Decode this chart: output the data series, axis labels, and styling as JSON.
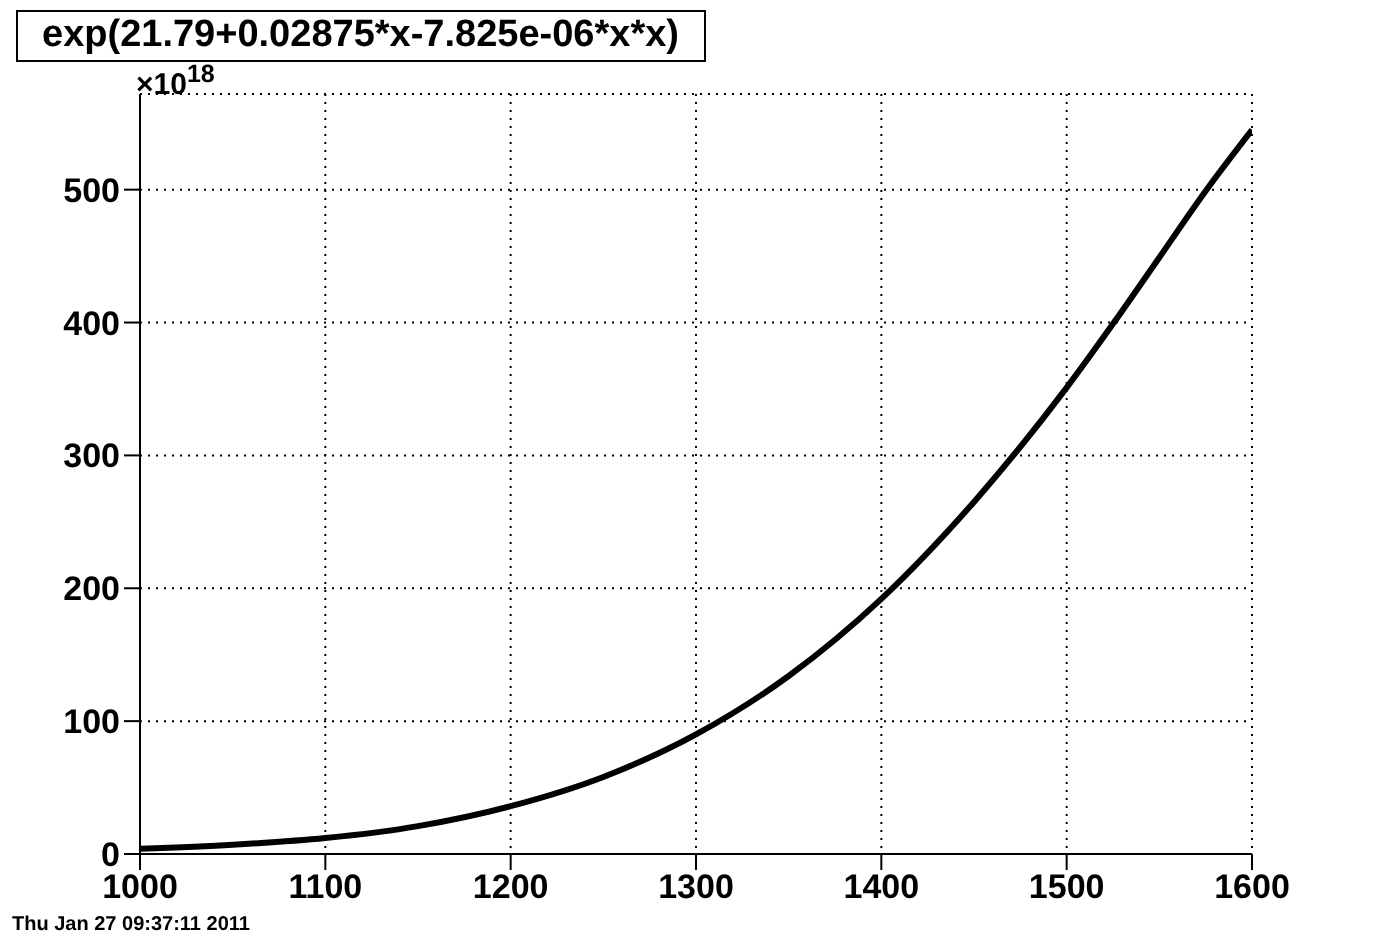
{
  "chart_data": {
    "type": "line",
    "title": "exp(21.79+0.02875*x-7.825e-06*x*x)",
    "ylabel": "×10$^{18}$",
    "annotations": [
      "Thu Jan 27 09:37:11 2011"
    ],
    "x": [
      1000,
      1050,
      1100,
      1150,
      1200,
      1250,
      1300,
      1350,
      1400,
      1450,
      1500,
      1525,
      1550,
      1575,
      1600
    ],
    "series": [
      {
        "color": "#000000",
        "values": [
          4,
          7,
          12,
          21,
          36,
          58,
          90,
          134,
          192,
          265,
          351,
          399,
          449,
          499,
          545
        ]
      }
    ],
    "xlim": [
      1000,
      1600
    ],
    "xticks": [
      1000,
      1100,
      1200,
      1300,
      1400,
      1500,
      1600
    ],
    "ylim": [
      0,
      572
    ],
    "yticks": [
      0,
      100,
      200,
      300,
      400,
      500
    ],
    "grid": true,
    "line_style": "solid"
  }
}
